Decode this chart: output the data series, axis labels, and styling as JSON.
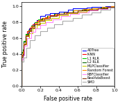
{
  "title": "",
  "xlabel": "False positive rate",
  "ylabel": "True positive rate",
  "xlim": [
    0.0,
    1.0
  ],
  "ylim": [
    0.0,
    1.05
  ],
  "xticks": [
    0.0,
    0.2,
    0.4,
    0.6,
    0.8,
    1.0
  ],
  "yticks": [
    0.0,
    0.2,
    0.4,
    0.6,
    0.8,
    1.0
  ],
  "legend_labels": [
    "ADTree",
    "K-NN",
    "L1 RLR",
    "L2 RLR",
    "MLPClassifier",
    "Random Forest",
    "RBFClassifier",
    "RealAdaBoost",
    "SMO"
  ],
  "curves": {
    "ADTree": {
      "fpr": [
        0.0,
        0.0,
        0.02,
        0.02,
        0.04,
        0.04,
        0.06,
        0.08,
        0.08,
        0.1,
        0.13,
        0.16,
        0.2,
        0.2,
        0.25,
        0.3,
        0.4,
        0.5,
        0.55,
        0.55,
        0.6,
        0.7,
        0.75,
        0.8,
        0.9,
        1.0
      ],
      "tpr": [
        0.0,
        0.38,
        0.38,
        0.55,
        0.55,
        0.62,
        0.66,
        0.66,
        0.72,
        0.75,
        0.79,
        0.82,
        0.82,
        0.87,
        0.89,
        0.91,
        0.93,
        0.95,
        0.95,
        0.97,
        0.97,
        0.98,
        0.99,
        0.99,
        1.0,
        1.0
      ],
      "color": "#0000FF",
      "lw": 0.8
    },
    "K-NN": {
      "fpr": [
        0.0,
        0.0,
        0.01,
        0.02,
        0.04,
        0.06,
        0.09,
        0.12,
        0.16,
        0.2,
        0.25,
        0.3,
        0.4,
        0.5,
        0.6,
        0.7,
        0.8,
        0.9,
        1.0
      ],
      "tpr": [
        0.0,
        0.38,
        0.42,
        0.52,
        0.63,
        0.68,
        0.73,
        0.77,
        0.81,
        0.84,
        0.86,
        0.88,
        0.9,
        0.92,
        0.94,
        0.95,
        0.97,
        0.99,
        1.0
      ],
      "color": "#FF0000",
      "lw": 0.8
    },
    "L1 RLR": {
      "fpr": [
        0.0,
        0.0,
        0.01,
        0.02,
        0.04,
        0.07,
        0.1,
        0.14,
        0.18,
        0.22,
        0.27,
        0.35,
        0.45,
        0.55,
        0.65,
        0.75,
        0.85,
        0.95,
        1.0
      ],
      "tpr": [
        0.0,
        0.42,
        0.46,
        0.56,
        0.65,
        0.7,
        0.75,
        0.8,
        0.83,
        0.85,
        0.87,
        0.9,
        0.92,
        0.94,
        0.95,
        0.97,
        0.98,
        0.99,
        1.0
      ],
      "color": "#00CC00",
      "lw": 0.8
    },
    "L2 RLR": {
      "fpr": [
        0.0,
        0.0,
        0.01,
        0.02,
        0.04,
        0.07,
        0.1,
        0.14,
        0.18,
        0.22,
        0.27,
        0.35,
        0.45,
        0.55,
        0.65,
        0.75,
        0.85,
        0.95,
        1.0
      ],
      "tpr": [
        0.0,
        0.41,
        0.45,
        0.55,
        0.64,
        0.7,
        0.75,
        0.79,
        0.82,
        0.85,
        0.87,
        0.9,
        0.92,
        0.94,
        0.95,
        0.97,
        0.98,
        0.99,
        1.0
      ],
      "color": "#006600",
      "lw": 0.8
    },
    "MLPClassifier": {
      "fpr": [
        0.0,
        0.0,
        0.01,
        0.03,
        0.05,
        0.08,
        0.12,
        0.16,
        0.2,
        0.25,
        0.32,
        0.4,
        0.5,
        0.6,
        0.7,
        0.8,
        0.9,
        1.0
      ],
      "tpr": [
        0.0,
        0.36,
        0.4,
        0.52,
        0.6,
        0.66,
        0.72,
        0.76,
        0.79,
        0.82,
        0.85,
        0.88,
        0.91,
        0.93,
        0.95,
        0.97,
        0.99,
        1.0
      ],
      "color": "#CCCC00",
      "lw": 0.8
    },
    "Random Forest": {
      "fpr": [
        0.0,
        0.0,
        0.01,
        0.02,
        0.04,
        0.07,
        0.1,
        0.14,
        0.18,
        0.23,
        0.28,
        0.36,
        0.46,
        0.56,
        0.66,
        0.76,
        0.86,
        0.96,
        1.0
      ],
      "tpr": [
        0.0,
        0.39,
        0.43,
        0.53,
        0.63,
        0.69,
        0.74,
        0.79,
        0.82,
        0.85,
        0.87,
        0.9,
        0.92,
        0.94,
        0.96,
        0.97,
        0.99,
        1.0,
        1.0
      ],
      "color": "#FF8C00",
      "lw": 0.8
    },
    "RBFClassifier": {
      "fpr": [
        0.0,
        0.0,
        0.01,
        0.03,
        0.06,
        0.1,
        0.15,
        0.2,
        0.26,
        0.33,
        0.42,
        0.52,
        0.62,
        0.72,
        0.82,
        0.92,
        1.0
      ],
      "tpr": [
        0.0,
        0.33,
        0.38,
        0.5,
        0.6,
        0.67,
        0.72,
        0.76,
        0.8,
        0.83,
        0.87,
        0.9,
        0.92,
        0.94,
        0.96,
        0.98,
        1.0
      ],
      "color": "#FF88FF",
      "lw": 0.8
    },
    "RealAdaBoost": {
      "fpr": [
        0.0,
        0.0,
        0.01,
        0.02,
        0.04,
        0.07,
        0.1,
        0.14,
        0.19,
        0.24,
        0.3,
        0.38,
        0.48,
        0.6,
        0.72,
        0.82,
        0.92,
        1.0
      ],
      "tpr": [
        0.0,
        0.36,
        0.4,
        0.52,
        0.62,
        0.68,
        0.73,
        0.77,
        0.81,
        0.84,
        0.87,
        0.9,
        0.92,
        0.94,
        0.95,
        0.97,
        0.99,
        1.0
      ],
      "color": "#8B3A0F",
      "lw": 0.8
    },
    "SMO": {
      "fpr": [
        0.0,
        0.0,
        0.02,
        0.05,
        0.09,
        0.14,
        0.2,
        0.27,
        0.35,
        0.44,
        0.55,
        0.65,
        0.75,
        0.85,
        0.95,
        1.0
      ],
      "tpr": [
        0.0,
        0.3,
        0.35,
        0.47,
        0.57,
        0.63,
        0.68,
        0.73,
        0.77,
        0.81,
        0.85,
        0.89,
        0.92,
        0.95,
        0.98,
        1.0
      ],
      "color": "#AAAAAA",
      "lw": 0.8
    }
  },
  "figsize": [
    1.73,
    1.5
  ],
  "dpi": 100,
  "tick_fontsize": 4.5,
  "label_fontsize": 5.5,
  "legend_fontsize": 3.5
}
